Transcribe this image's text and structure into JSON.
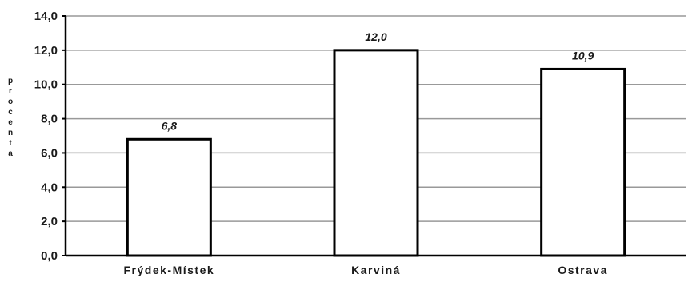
{
  "chart_data": {
    "type": "bar",
    "title": "",
    "xlabel": "",
    "ylabel": "procenta",
    "categories": [
      "Frýdek-Místek",
      "Karviná",
      "Ostrava"
    ],
    "values": [
      6.8,
      12.0,
      10.9
    ],
    "value_labels": [
      "6,8",
      "12,0",
      "10,9"
    ],
    "ylim": [
      0,
      14
    ],
    "yticks": [
      0,
      2,
      4,
      6,
      8,
      10,
      12,
      14
    ],
    "ytick_labels": [
      "0,0",
      "2,0",
      "4,0",
      "6,0",
      "8,0",
      "10,0",
      "12,0",
      "14,0"
    ],
    "grid": true,
    "legend": "none",
    "colors": {
      "bar_fill": "#ffffff",
      "bar_stroke": "#000000",
      "grid": "#999999",
      "axis": "#000000"
    }
  }
}
